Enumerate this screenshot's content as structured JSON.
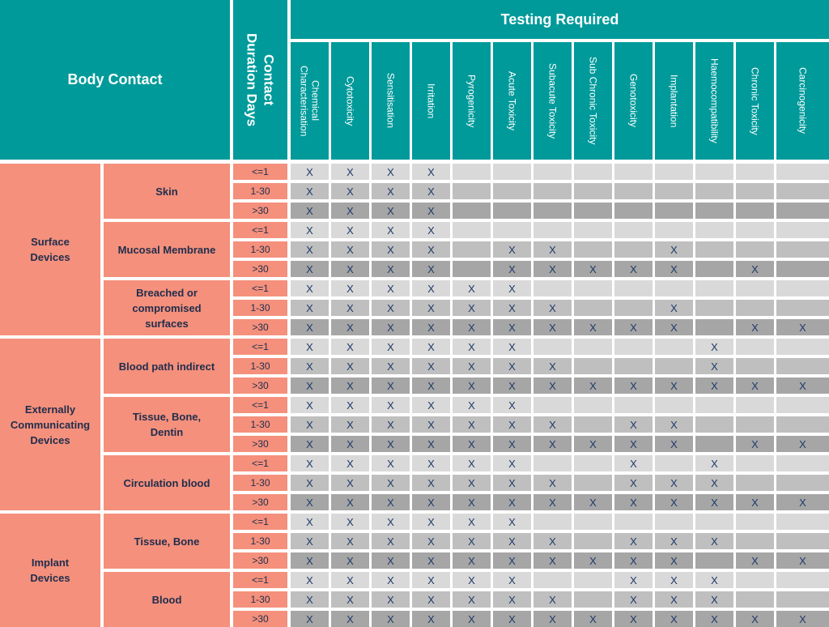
{
  "headers": {
    "body_contact": "Body Contact",
    "contact_duration": "Contact\nDuration Days",
    "testing_required": "Testing Required"
  },
  "tests": [
    "Chemical\nCharacterisation",
    "Cytotoxicity",
    "Sensitisation",
    "Irritation",
    "Pyrogenicity",
    "Acute Toxicity",
    "Subacute Toxicity",
    "Sub Chronic Toxicity",
    "Genotoxicity",
    "Implantation",
    "Haemocompatibility",
    "Chronic Toxicity",
    "Carcinogenicity"
  ],
  "categories": [
    {
      "name": "Surface\nDevices",
      "contacts": [
        {
          "name": "Skin",
          "rows": [
            {
              "duration": "<=1",
              "marks": [
                "X",
                "X",
                "X",
                "X",
                "",
                "",
                "",
                "",
                "",
                "",
                "",
                "",
                ""
              ]
            },
            {
              "duration": "1-30",
              "marks": [
                "X",
                "X",
                "X",
                "X",
                "",
                "",
                "",
                "",
                "",
                "",
                "",
                "",
                ""
              ]
            },
            {
              "duration": ">30",
              "marks": [
                "X",
                "X",
                "X",
                "X",
                "",
                "",
                "",
                "",
                "",
                "",
                "",
                "",
                ""
              ]
            }
          ]
        },
        {
          "name": "Mucosal Membrane",
          "rows": [
            {
              "duration": "<=1",
              "marks": [
                "X",
                "X",
                "X",
                "X",
                "",
                "",
                "",
                "",
                "",
                "",
                "",
                "",
                ""
              ]
            },
            {
              "duration": "1-30",
              "marks": [
                "X",
                "X",
                "X",
                "X",
                "",
                "X",
                "X",
                "",
                "",
                "X",
                "",
                "",
                ""
              ]
            },
            {
              "duration": ">30",
              "marks": [
                "X",
                "X",
                "X",
                "X",
                "",
                "X",
                "X",
                "X",
                "X",
                "X",
                "",
                "X",
                ""
              ]
            }
          ]
        },
        {
          "name": "Breached or\ncompromised\nsurfaces",
          "rows": [
            {
              "duration": "<=1",
              "marks": [
                "X",
                "X",
                "X",
                "X",
                "X",
                "X",
                "",
                "",
                "",
                "",
                "",
                "",
                ""
              ]
            },
            {
              "duration": "1-30",
              "marks": [
                "X",
                "X",
                "X",
                "X",
                "X",
                "X",
                "X",
                "",
                "",
                "X",
                "",
                "",
                ""
              ]
            },
            {
              "duration": ">30",
              "marks": [
                "X",
                "X",
                "X",
                "X",
                "X",
                "X",
                "X",
                "X",
                "X",
                "X",
                "",
                "X",
                "X"
              ]
            }
          ]
        }
      ]
    },
    {
      "name": "Externally\nCommunicating\nDevices",
      "contacts": [
        {
          "name": "Blood path indirect",
          "rows": [
            {
              "duration": "<=1",
              "marks": [
                "X",
                "X",
                "X",
                "X",
                "X",
                "X",
                "",
                "",
                "",
                "",
                "X",
                "",
                ""
              ]
            },
            {
              "duration": "1-30",
              "marks": [
                "X",
                "X",
                "X",
                "X",
                "X",
                "X",
                "X",
                "",
                "",
                "",
                "X",
                "",
                ""
              ]
            },
            {
              "duration": ">30",
              "marks": [
                "X",
                "X",
                "X",
                "X",
                "X",
                "X",
                "X",
                "X",
                "X",
                "X",
                "X",
                "X",
                "X"
              ]
            }
          ]
        },
        {
          "name": "Tissue, Bone,\nDentin",
          "rows": [
            {
              "duration": "<=1",
              "marks": [
                "X",
                "X",
                "X",
                "X",
                "X",
                "X",
                "",
                "",
                "",
                "",
                "",
                "",
                ""
              ]
            },
            {
              "duration": "1-30",
              "marks": [
                "X",
                "X",
                "X",
                "X",
                "X",
                "X",
                "X",
                "",
                "X",
                "X",
                "",
                "",
                ""
              ]
            },
            {
              "duration": ">30",
              "marks": [
                "X",
                "X",
                "X",
                "X",
                "X",
                "X",
                "X",
                "X",
                "X",
                "X",
                "",
                "X",
                "X"
              ]
            }
          ]
        },
        {
          "name": "Circulation blood",
          "rows": [
            {
              "duration": "<=1",
              "marks": [
                "X",
                "X",
                "X",
                "X",
                "X",
                "X",
                "",
                "",
                "X",
                "",
                "X",
                "",
                ""
              ]
            },
            {
              "duration": "1-30",
              "marks": [
                "X",
                "X",
                "X",
                "X",
                "X",
                "X",
                "X",
                "",
                "X",
                "X",
                "X",
                "",
                ""
              ]
            },
            {
              "duration": ">30",
              "marks": [
                "X",
                "X",
                "X",
                "X",
                "X",
                "X",
                "X",
                "X",
                "X",
                "X",
                "X",
                "X",
                "X"
              ]
            }
          ]
        }
      ]
    },
    {
      "name": "Implant\nDevices",
      "contacts": [
        {
          "name": "Tissue, Bone",
          "rows": [
            {
              "duration": "<=1",
              "marks": [
                "X",
                "X",
                "X",
                "X",
                "X",
                "X",
                "",
                "",
                "",
                "",
                "",
                "",
                ""
              ]
            },
            {
              "duration": "1-30",
              "marks": [
                "X",
                "X",
                "X",
                "X",
                "X",
                "X",
                "X",
                "",
                "X",
                "X",
                "X",
                "",
                ""
              ]
            },
            {
              "duration": ">30",
              "marks": [
                "X",
                "X",
                "X",
                "X",
                "X",
                "X",
                "X",
                "X",
                "X",
                "X",
                "",
                "X",
                "X"
              ]
            }
          ]
        },
        {
          "name": "Blood",
          "rows": [
            {
              "duration": "<=1",
              "marks": [
                "X",
                "X",
                "X",
                "X",
                "X",
                "X",
                "",
                "",
                "X",
                "X",
                "X",
                "",
                ""
              ]
            },
            {
              "duration": "1-30",
              "marks": [
                "X",
                "X",
                "X",
                "X",
                "X",
                "X",
                "X",
                "",
                "X",
                "X",
                "X",
                "",
                ""
              ]
            },
            {
              "duration": ">30",
              "marks": [
                "X",
                "X",
                "X",
                "X",
                "X",
                "X",
                "X",
                "X",
                "X",
                "X",
                "X",
                "X",
                "X"
              ]
            }
          ]
        }
      ]
    }
  ],
  "colors": {
    "header_teal": "#019a9a",
    "salmon": "#f4907c",
    "row_light": "#d9d9d9",
    "row_mid": "#bfbfbf",
    "row_dark": "#a6a6a6",
    "mark_text": "#1f3a68"
  }
}
